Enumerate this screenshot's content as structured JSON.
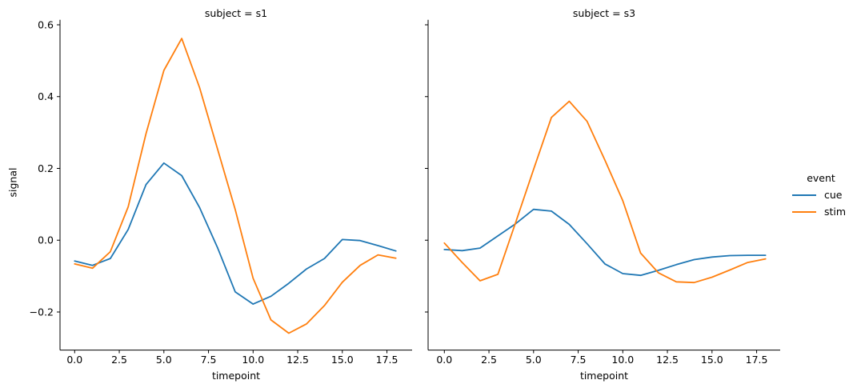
{
  "chart_data": {
    "type": "line",
    "x": [
      0,
      1,
      2,
      3,
      4,
      5,
      6,
      7,
      8,
      9,
      10,
      11,
      12,
      13,
      14,
      15,
      16,
      17,
      18
    ],
    "xlabel": "timepoint",
    "ylabel": "signal",
    "xticks": [
      0,
      2.5,
      5,
      7.5,
      10,
      12.5,
      15,
      17.5
    ],
    "xtick_labels": [
      "0.0",
      "2.5",
      "5.0",
      "7.5",
      "10.0",
      "12.5",
      "15.0",
      "17.5"
    ],
    "yticks": [
      0.6,
      0.4,
      0.2,
      0.0,
      -0.2
    ],
    "ytick_labels": [
      "0.6",
      "0.4",
      "0.2",
      "0.0",
      "−0.2"
    ],
    "xlim": [
      -0.9,
      18.9
    ],
    "ylim": [
      -0.306,
      0.614
    ],
    "grid": false,
    "legend": {
      "title": "event",
      "position": "center right",
      "items": [
        {
          "label": "cue",
          "color": "#1f77b4"
        },
        {
          "label": "stim",
          "color": "#ff7f0e"
        }
      ]
    },
    "colors": {
      "cue": "#1f77b4",
      "stim": "#ff7f0e"
    },
    "facets": [
      {
        "title": "subject = s1",
        "series": [
          {
            "name": "cue",
            "values": [
              -0.058,
              -0.07,
              -0.051,
              0.03,
              0.155,
              0.215,
              0.18,
              0.091,
              -0.02,
              -0.144,
              -0.178,
              -0.156,
              -0.12,
              -0.08,
              -0.051,
              0.002,
              -0.001,
              -0.015,
              -0.03
            ]
          },
          {
            "name": "stim",
            "values": [
              -0.066,
              -0.078,
              -0.032,
              0.093,
              0.297,
              0.473,
              0.562,
              0.425,
              0.255,
              0.085,
              -0.106,
              -0.222,
              -0.259,
              -0.233,
              -0.182,
              -0.117,
              -0.07,
              -0.041,
              -0.05
            ]
          }
        ]
      },
      {
        "title": "subject = s3",
        "series": [
          {
            "name": "cue",
            "values": [
              -0.026,
              -0.029,
              -0.022,
              0.012,
              0.046,
              0.086,
              0.081,
              0.044,
              -0.01,
              -0.066,
              -0.093,
              -0.098,
              -0.084,
              -0.068,
              -0.054,
              -0.047,
              -0.043,
              -0.042,
              -0.042
            ]
          },
          {
            "name": "stim",
            "values": [
              -0.008,
              -0.062,
              -0.113,
              -0.095,
              0.05,
              0.197,
              0.342,
              0.387,
              0.331,
              0.223,
              0.11,
              -0.036,
              -0.091,
              -0.116,
              -0.118,
              -0.103,
              -0.083,
              -0.062,
              -0.052
            ]
          }
        ]
      }
    ]
  }
}
